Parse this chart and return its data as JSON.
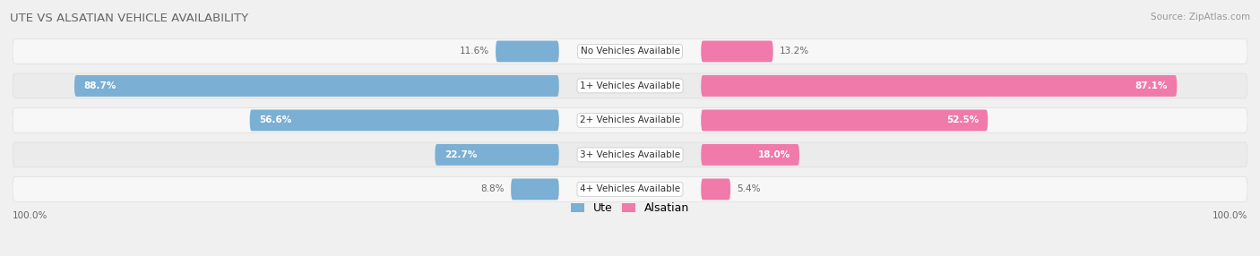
{
  "title": "UTE VS ALSATIAN VEHICLE AVAILABILITY",
  "source": "Source: ZipAtlas.com",
  "categories": [
    "No Vehicles Available",
    "1+ Vehicles Available",
    "2+ Vehicles Available",
    "3+ Vehicles Available",
    "4+ Vehicles Available"
  ],
  "ute_values": [
    11.6,
    88.7,
    56.6,
    22.7,
    8.8
  ],
  "alsatian_values": [
    13.2,
    87.1,
    52.5,
    18.0,
    5.4
  ],
  "ute_color": "#7bafd4",
  "alsatian_color": "#f07aaa",
  "row_bg_color": "#f0f0f0",
  "row_stripe1": "#f7f7f7",
  "row_stripe2": "#ebebeb",
  "title_color": "#666666",
  "source_color": "#999999",
  "label_dark": "#666666",
  "legend_ute": "Ute",
  "legend_alsatian": "Alsatian",
  "figwidth": 14.06,
  "figheight": 2.86,
  "dpi": 100
}
